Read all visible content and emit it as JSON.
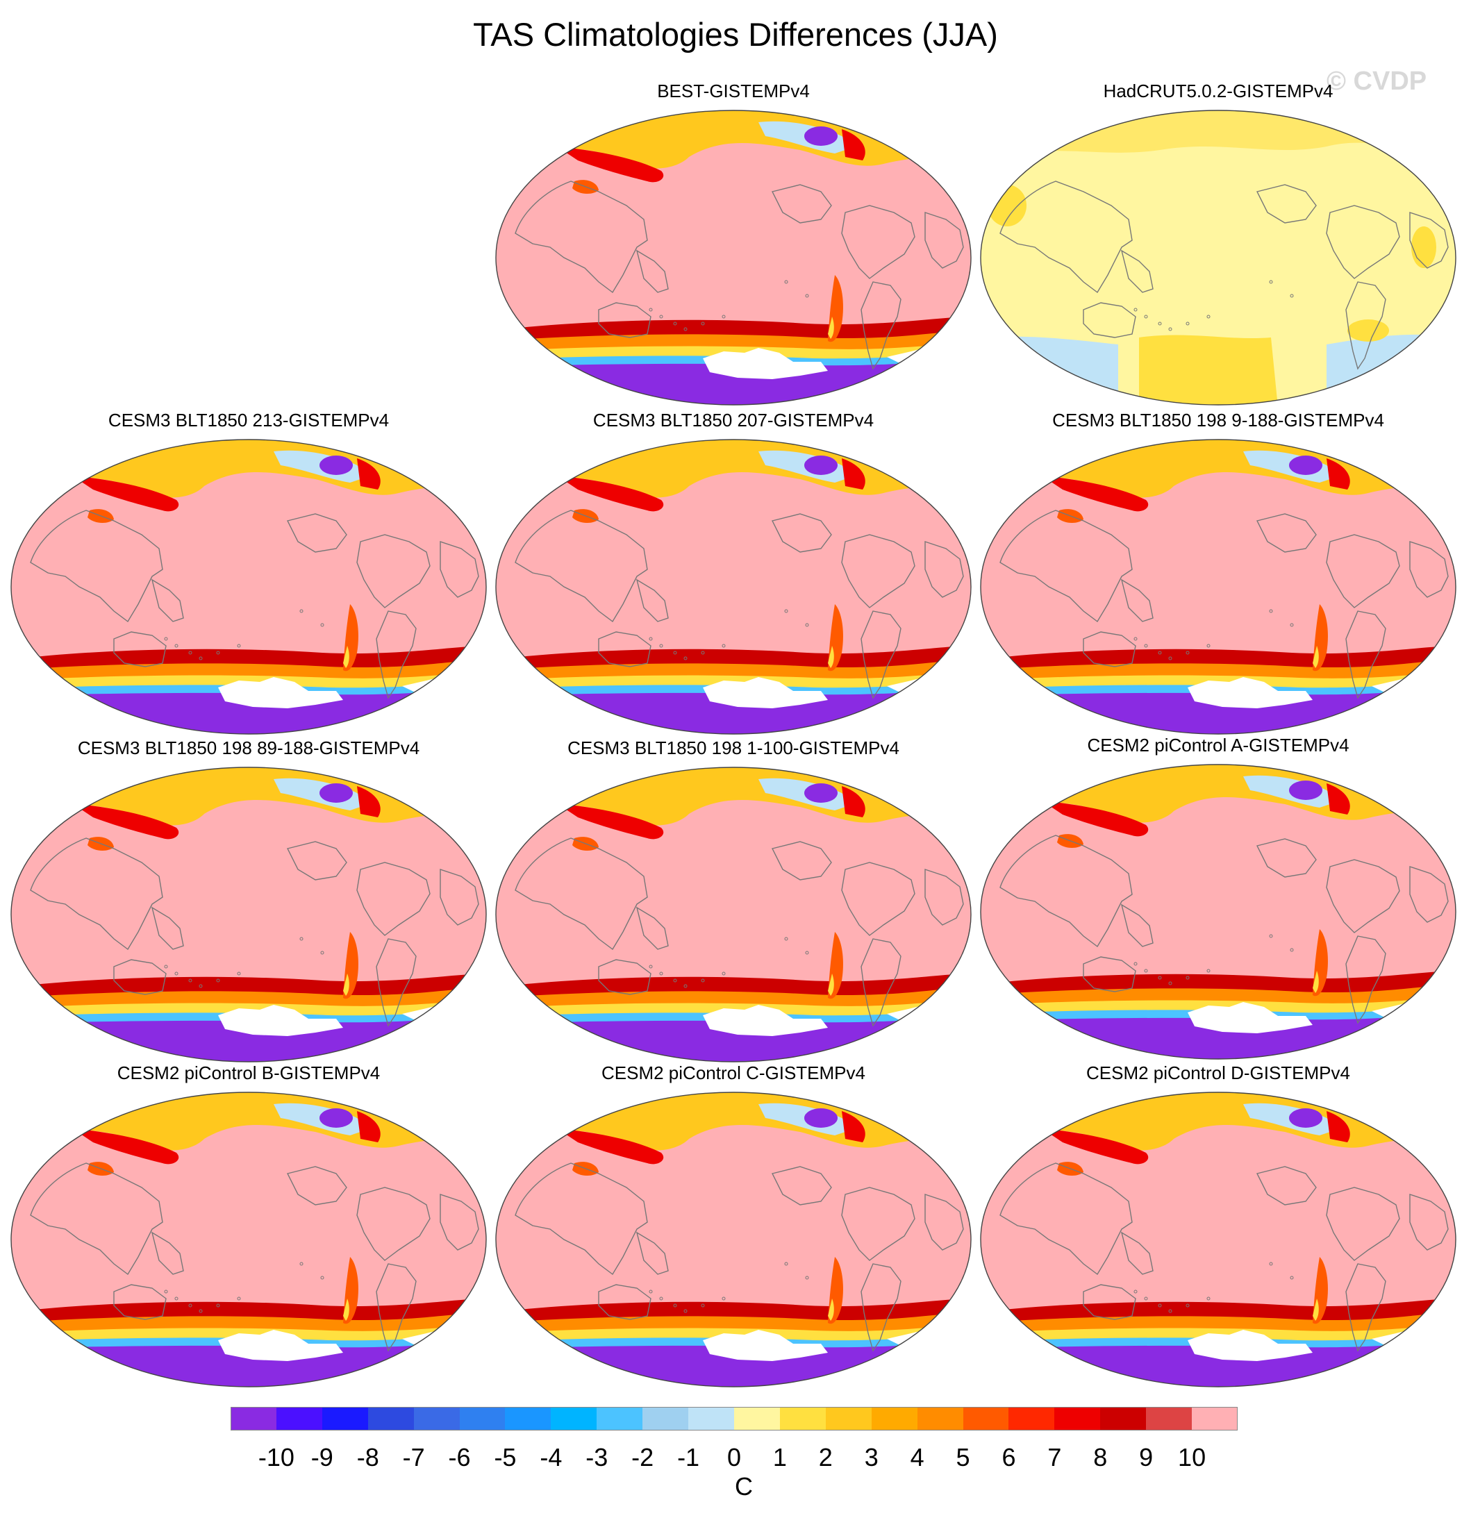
{
  "title": "TAS Climatologies Differences (JJA)",
  "watermark": "© CVDP",
  "panels": [
    {
      "title": "BEST-GISTEMPv4",
      "scheme": "model"
    },
    {
      "title": "HadCRUT5.0.2-GISTEMPv4",
      "scheme": "obs"
    },
    {
      "title": "CESM3 BLT1850 213-GISTEMPv4",
      "scheme": "model"
    },
    {
      "title": "CESM3 BLT1850 207-GISTEMPv4",
      "scheme": "model"
    },
    {
      "title": "CESM3 BLT1850 198 9-188-GISTEMPv4",
      "scheme": "model"
    },
    {
      "title": "CESM3 BLT1850 198 89-188-GISTEMPv4",
      "scheme": "model"
    },
    {
      "title": "CESM3 BLT1850 198 1-100-GISTEMPv4",
      "scheme": "model"
    },
    {
      "title": "CESM2 piControl A-GISTEMPv4",
      "scheme": "model"
    },
    {
      "title": "CESM2 piControl B-GISTEMPv4",
      "scheme": "model"
    },
    {
      "title": "CESM2 piControl C-GISTEMPv4",
      "scheme": "model"
    },
    {
      "title": "CESM2 piControl D-GISTEMPv4",
      "scheme": "model"
    }
  ],
  "colorbar": {
    "unit": "C",
    "labels": [
      "-10",
      "-9",
      "-8",
      "-7",
      "-6",
      "-5",
      "-4",
      "-3",
      "-2",
      "-1",
      "0",
      "1",
      "2",
      "3",
      "4",
      "5",
      "6",
      "7",
      "8",
      "9",
      "10"
    ],
    "colors": [
      "#8a2be2",
      "#4b10ff",
      "#1a1aff",
      "#2d4ae0",
      "#3a6ae6",
      "#2f80f0",
      "#1a96ff",
      "#00b4ff",
      "#4cc3ff",
      "#9fd0f0",
      "#bfe3f7",
      "#fff6a0",
      "#ffe040",
      "#ffc81e",
      "#ffaa00",
      "#ff8c00",
      "#ff5a00",
      "#ff2800",
      "#ee0000",
      "#cc0000",
      "#dd4444",
      "#ffb0b4"
    ]
  }
}
